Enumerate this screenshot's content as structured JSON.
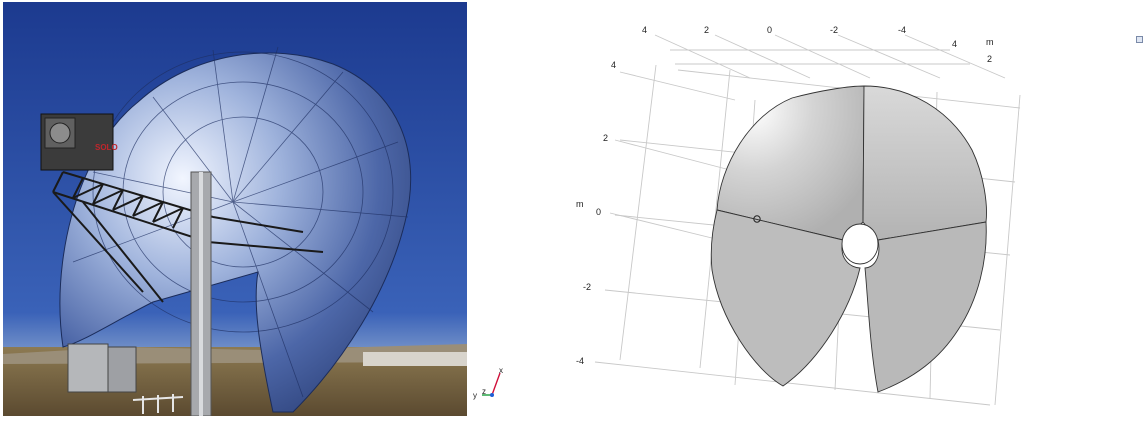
{
  "photo": {
    "unit_logo_text": "SOLO"
  },
  "triad": {
    "axis_x": "x",
    "axis_y": "y",
    "axis_z": "z"
  },
  "viewport": {
    "unit_label_top": "m",
    "unit_label_left": "m",
    "top_axis_ticks": [
      "4",
      "2",
      "0",
      "-2",
      "-4"
    ],
    "right_axis_ticks": [
      "4",
      "2"
    ],
    "left_axis_ticks": [
      "4",
      "2",
      "0",
      "-2",
      "-4"
    ],
    "colors": {
      "grid": "#c8c8c8",
      "surface_light": "#eeeeee",
      "surface_dark": "#b9b9b9",
      "edge": "#333333"
    }
  }
}
